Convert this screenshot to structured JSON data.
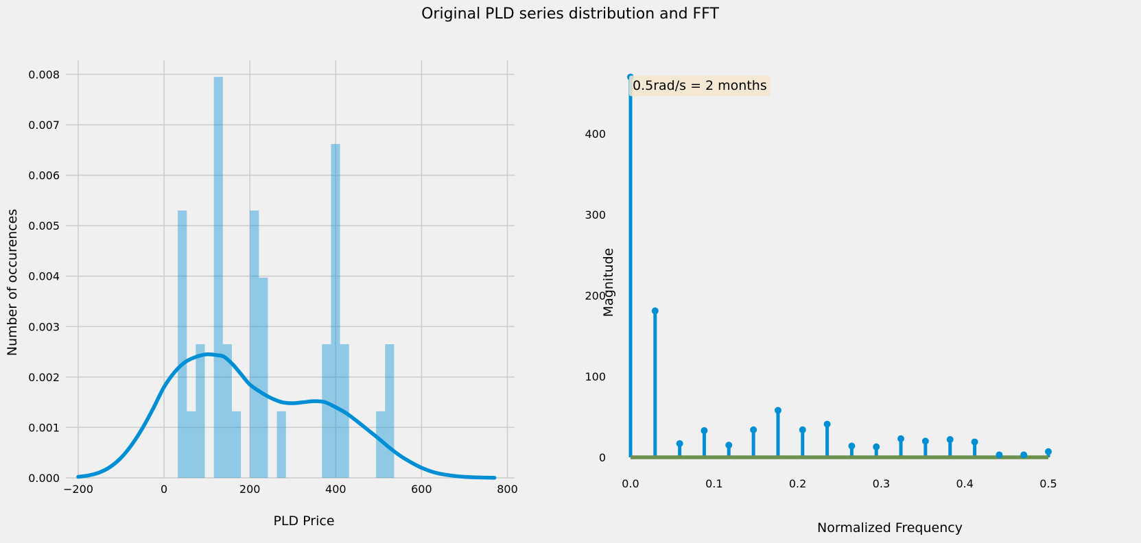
{
  "figure": {
    "suptitle": "Original PLD series distribution and FFT",
    "background": "#f0f0f0",
    "grid_color": "#cbcbcb",
    "text_color": "#000000"
  },
  "chart_data": [
    {
      "type": "bar",
      "subtype": "histogram-with-kde",
      "xlabel": "PLD Price",
      "ylabel": "Number of occurences",
      "xlim": [
        -225,
        815
      ],
      "ylim": [
        0,
        0.0083
      ],
      "xticks": [
        -200,
        0,
        200,
        400,
        600,
        800
      ],
      "xtick_labels": [
        "−200",
        "0",
        "200",
        "400",
        "600",
        "800"
      ],
      "yticks": [
        0,
        0.001,
        0.002,
        0.003,
        0.004,
        0.005,
        0.006,
        0.007,
        0.008
      ],
      "ytick_labels": [
        "0.000",
        "0.001",
        "0.002",
        "0.003",
        "0.004",
        "0.005",
        "0.006",
        "0.007",
        "0.008"
      ],
      "grid": true,
      "bar_color": "#008fd5",
      "bar_opacity": 0.4,
      "line_color": "#008fd5",
      "bins": [
        {
          "x0": 32,
          "x1": 53,
          "value": 0.0053
        },
        {
          "x0": 53,
          "x1": 74,
          "value": 0.00132
        },
        {
          "x0": 74,
          "x1": 95,
          "value": 0.00265
        },
        {
          "x0": 95,
          "x1": 116,
          "value": 0
        },
        {
          "x0": 116,
          "x1": 137,
          "value": 0.00795
        },
        {
          "x0": 137,
          "x1": 158,
          "value": 0.00265
        },
        {
          "x0": 158,
          "x1": 179,
          "value": 0.00132
        },
        {
          "x0": 179,
          "x1": 200,
          "value": 0
        },
        {
          "x0": 200,
          "x1": 221,
          "value": 0.0053
        },
        {
          "x0": 221,
          "x1": 242,
          "value": 0.00397
        },
        {
          "x0": 242,
          "x1": 263,
          "value": 0
        },
        {
          "x0": 263,
          "x1": 284,
          "value": 0.00132
        },
        {
          "x0": 284,
          "x1": 305,
          "value": 0
        },
        {
          "x0": 305,
          "x1": 326,
          "value": 0
        },
        {
          "x0": 326,
          "x1": 347,
          "value": 0
        },
        {
          "x0": 347,
          "x1": 368,
          "value": 0
        },
        {
          "x0": 368,
          "x1": 389,
          "value": 0.00265
        },
        {
          "x0": 389,
          "x1": 410,
          "value": 0.00662
        },
        {
          "x0": 410,
          "x1": 431,
          "value": 0.00265
        },
        {
          "x0": 431,
          "x1": 452,
          "value": 0
        },
        {
          "x0": 452,
          "x1": 473,
          "value": 0
        },
        {
          "x0": 473,
          "x1": 494,
          "value": 0
        },
        {
          "x0": 494,
          "x1": 515,
          "value": 0.00132
        },
        {
          "x0": 515,
          "x1": 536,
          "value": 0.00265
        }
      ],
      "kde": {
        "x": [
          -200,
          -175,
          -150,
          -125,
          -100,
          -75,
          -50,
          -25,
          0,
          25,
          50,
          75,
          100,
          125,
          140,
          160,
          180,
          200,
          225,
          250,
          275,
          300,
          325,
          350,
          375,
          400,
          425,
          450,
          475,
          500,
          525,
          550,
          575,
          600,
          625,
          650,
          675,
          700,
          725,
          770
        ],
        "y": [
          2e-05,
          5e-05,
          0.00011,
          0.00022,
          0.0004,
          0.00066,
          0.00099,
          0.00138,
          0.0018,
          0.0021,
          0.0023,
          0.0024,
          0.00245,
          0.00243,
          0.0024,
          0.00225,
          0.00205,
          0.00185,
          0.0017,
          0.00158,
          0.0015,
          0.00148,
          0.0015,
          0.00152,
          0.0015,
          0.0014,
          0.00128,
          0.00112,
          0.00095,
          0.00078,
          0.0006,
          0.00044,
          0.00031,
          0.0002,
          0.00012,
          7e-05,
          4e-05,
          2e-05,
          1e-05,
          2e-06
        ]
      }
    },
    {
      "type": "stem",
      "xlabel": "Normalized Frequency",
      "ylabel": "Magnitude",
      "xlim": [
        -0.01,
        0.5
      ],
      "ylim": [
        -8,
        480
      ],
      "xticks": [
        0,
        0.1,
        0.2,
        0.3,
        0.4,
        0.5
      ],
      "xtick_labels": [
        "0.0",
        "0.1",
        "0.2",
        "0.3",
        "0.4",
        "0.5"
      ],
      "yticks": [
        0,
        100,
        200,
        300,
        400
      ],
      "ytick_labels": [
        "0",
        "100",
        "200",
        "300",
        "400"
      ],
      "grid": false,
      "stem_color": "#008fd5",
      "baseline_color": "#6d904f",
      "x": [
        0,
        0.0294,
        0.0588,
        0.0882,
        0.1176,
        0.1471,
        0.1765,
        0.2059,
        0.2353,
        0.2647,
        0.2941,
        0.3235,
        0.3529,
        0.3824,
        0.4118,
        0.4412,
        0.4706,
        0.5
      ],
      "y": [
        470,
        181,
        17,
        33,
        15,
        34,
        58,
        34,
        41,
        14,
        13,
        23,
        20,
        22,
        19,
        3,
        3,
        7
      ],
      "annotation": {
        "text": "0.5rad/s = 2 months",
        "x": 0,
        "y": 460,
        "box_color": "#f5e6cc"
      }
    }
  ]
}
